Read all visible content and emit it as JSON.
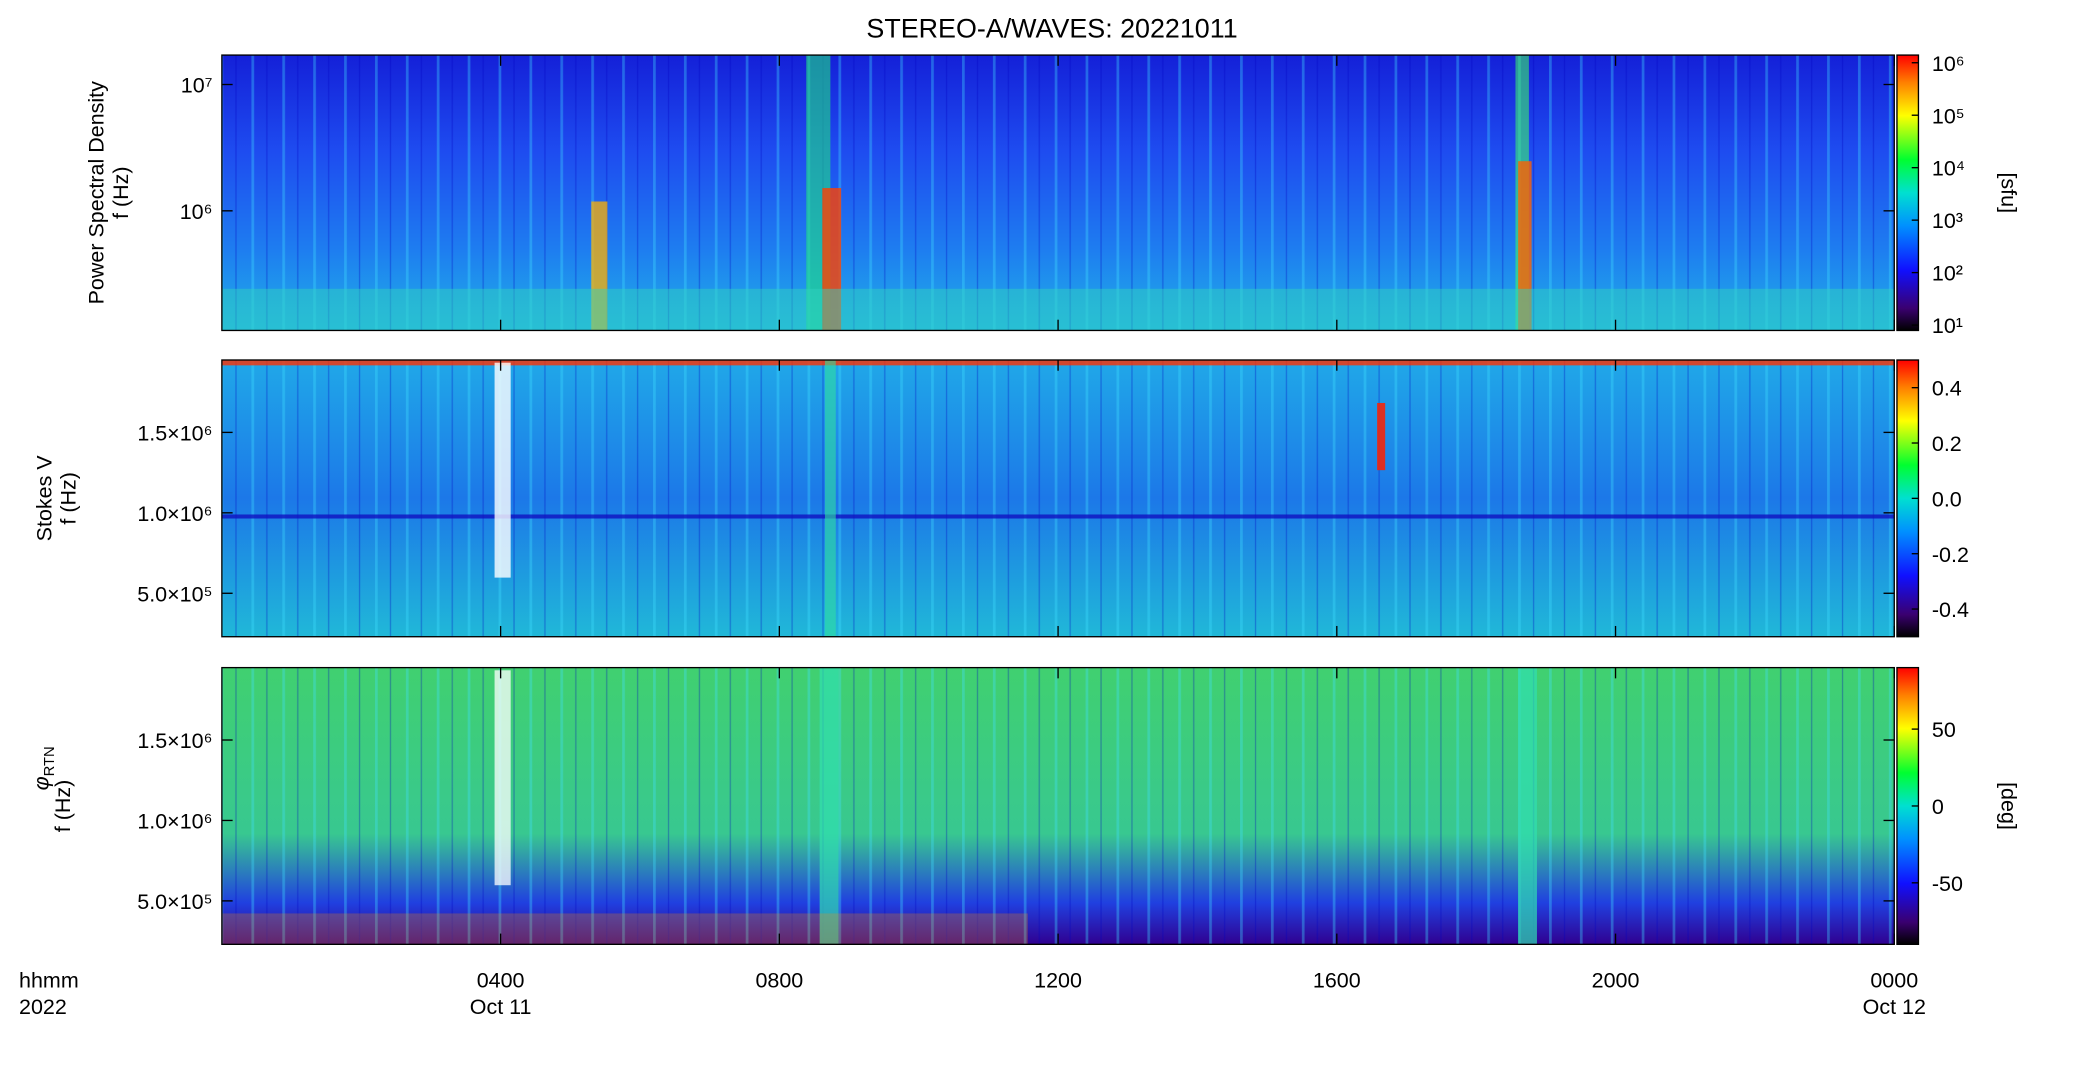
{
  "title": "STEREO-A/WAVES: 20221011",
  "xaxis": {
    "xlim": [
      0,
      24
    ],
    "xticks": [
      {
        "value": 4,
        "label": "0400"
      },
      {
        "value": 8,
        "label": "0800"
      },
      {
        "value": 12,
        "label": "1200"
      },
      {
        "value": 16,
        "label": "1600"
      },
      {
        "value": 20,
        "label": "2000"
      },
      {
        "value": 24,
        "label": "0000"
      }
    ],
    "date_ticks": [
      {
        "value": 4,
        "label": "Oct 11"
      },
      {
        "value": 24,
        "label": "Oct 12"
      }
    ],
    "format_label": "hhmm",
    "year_label": "2022"
  },
  "chart_data": [
    {
      "type": "heatmap",
      "ylabel": [
        "Power Spectral Density",
        "f (Hz)"
      ],
      "ylog": true,
      "ylim": [
        113000,
        17100000
      ],
      "yticks": [
        {
          "value": 1000000,
          "label": "10⁶"
        },
        {
          "value": 10000000,
          "label": "10⁷"
        }
      ],
      "colorbar": {
        "label": "[sfu]",
        "log": true,
        "lim": [
          7.9,
          1400000
        ],
        "ticks": [
          {
            "value": 10,
            "label": "10¹"
          },
          {
            "value": 100,
            "label": "10²"
          },
          {
            "value": 1000,
            "label": "10³"
          },
          {
            "value": 10000,
            "label": "10⁴"
          },
          {
            "value": 100000,
            "label": "10⁵"
          },
          {
            "value": 1000000,
            "label": "10⁶"
          }
        ]
      }
    },
    {
      "type": "heatmap",
      "ylabel": [
        "Stokes V",
        "f (Hz)"
      ],
      "ylog": false,
      "ylim": [
        230000,
        1950000
      ],
      "yticks": [
        {
          "value": 500000,
          "label": "5.0×10⁵"
        },
        {
          "value": 1000000,
          "label": "1.0×10⁶"
        },
        {
          "value": 1500000,
          "label": "1.5×10⁶"
        }
      ],
      "colorbar": {
        "log": false,
        "lim": [
          -0.5,
          0.5
        ],
        "ticks": [
          -0.4,
          -0.2,
          {
            "value": 0,
            "label": "0.0"
          },
          0.2,
          0.4
        ]
      }
    },
    {
      "type": "heatmap",
      "ylabel_symbol": "φ",
      "ylabel_subscript": "RTN",
      "ylabel": [
        "f (Hz)"
      ],
      "ylog": false,
      "ylim": [
        230000,
        1950000
      ],
      "yticks": [
        {
          "value": 500000,
          "label": "5.0×10⁵"
        },
        {
          "value": 1000000,
          "label": "1.0×10⁶"
        },
        {
          "value": 1500000,
          "label": "1.5×10⁶"
        }
      ],
      "colorbar": {
        "label": "[deg]",
        "log": false,
        "lim": [
          -90,
          90
        ],
        "ticks": [
          -50,
          0,
          50
        ]
      }
    }
  ]
}
